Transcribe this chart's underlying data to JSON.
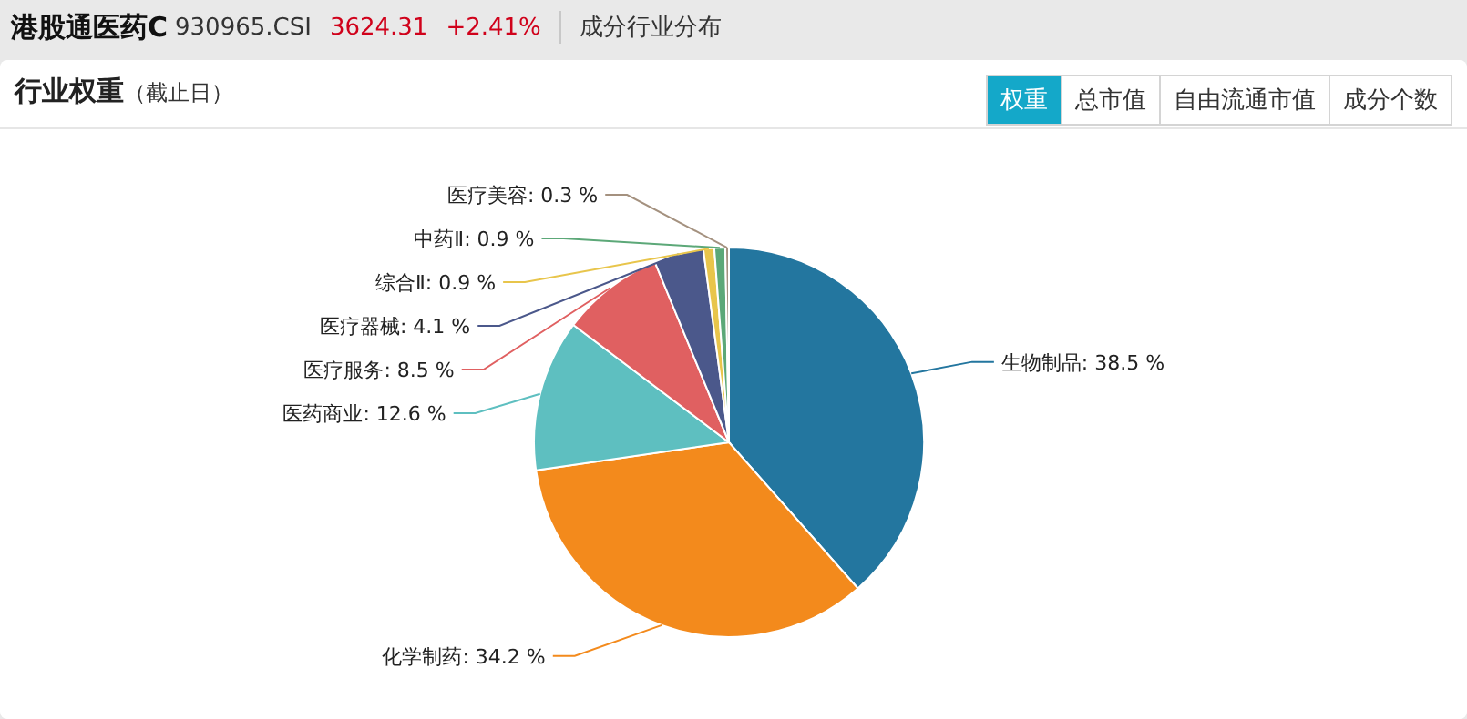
{
  "chart_data": {
    "type": "pie",
    "title": "港股通医药C",
    "subtitle": "行业权重",
    "annotations": [
      "930965.CSI",
      "3624.31",
      "+2.41%",
      "成分行业分布",
      "（截止日）",
      "权重",
      "总市值",
      "自由流通市值",
      "成分个数"
    ],
    "categories": [
      "生物制品",
      "化学制药",
      "医药商业",
      "医疗服务",
      "医疗器械",
      "综合Ⅱ",
      "中药Ⅱ",
      "医疗美容"
    ],
    "values": [
      38.5,
      34.2,
      12.6,
      8.5,
      4.1,
      0.9,
      0.9,
      0.3
    ],
    "value_labels": [
      "38.5 %",
      "34.2 %",
      "12.6 %",
      "8.5 %",
      "4.1 %",
      "0.9 %",
      "0.9 %",
      "0.3 %"
    ],
    "colors": [
      "#23769f",
      "#f38a1c",
      "#5ebfc0",
      "#e06061",
      "#4b588b",
      "#e8c54b",
      "#5ca878",
      "#a4917f"
    ]
  }
}
